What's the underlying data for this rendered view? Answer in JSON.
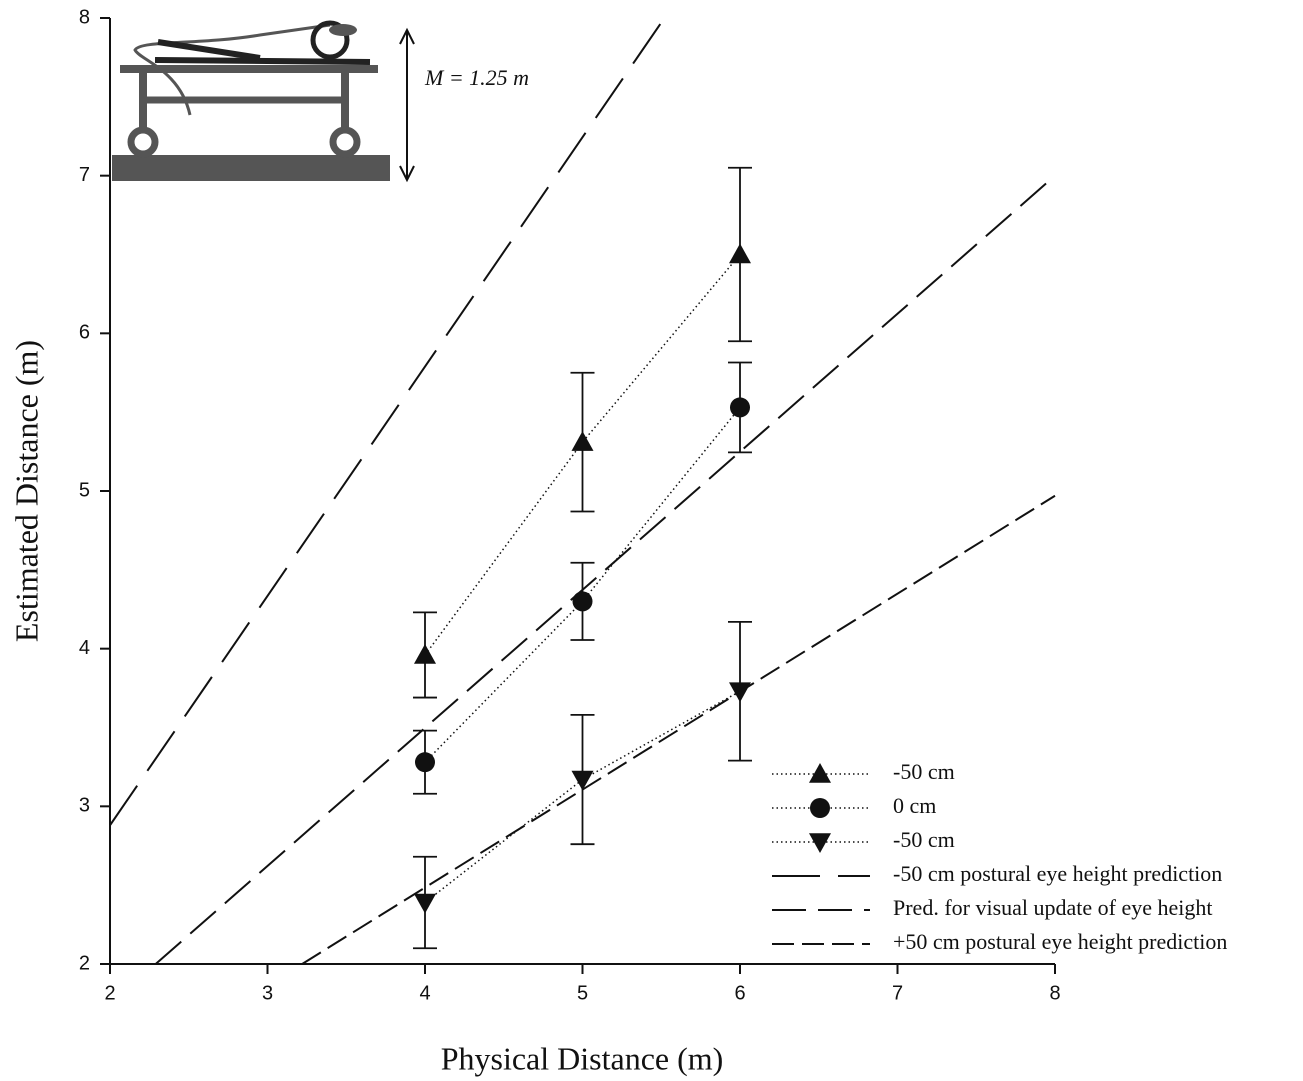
{
  "chart_data": {
    "type": "scatter",
    "xlabel": "Physical Distance (m)",
    "ylabel": "Estimated Distance (m)",
    "annotation": "M = 1.25 m",
    "xlim": [
      2,
      8
    ],
    "ylim": [
      2,
      8
    ],
    "xticks": [
      2,
      3,
      4,
      5,
      6,
      7,
      8
    ],
    "yticks": [
      2,
      3,
      4,
      5,
      6,
      7,
      8
    ],
    "series": [
      {
        "name": "-50 cm",
        "color": "#111111",
        "marker": "triangle-up",
        "line_style": "dotted",
        "x": [
          4,
          5,
          6
        ],
        "values": [
          3.96,
          5.31,
          6.5
        ],
        "errors": [
          0.27,
          0.44,
          0.55
        ]
      },
      {
        "name": "0 cm",
        "color": "#111111",
        "marker": "circle",
        "line_style": "dotted",
        "x": [
          4,
          5,
          6
        ],
        "values": [
          3.28,
          4.3,
          5.53
        ],
        "errors": [
          0.2,
          0.245,
          0.285
        ]
      },
      {
        "name": "-50 cm",
        "color": "#111111",
        "marker": "triangle-down",
        "line_style": "dotted",
        "x": [
          4,
          5,
          6
        ],
        "values": [
          2.39,
          3.17,
          3.73
        ],
        "errors": [
          0.29,
          0.41,
          0.44
        ]
      },
      {
        "name": "-50 cm postural eye height prediction",
        "color": "#111111",
        "line_style": "long-dash",
        "x": [
          2,
          5.52
        ],
        "values": [
          2.88,
          8
        ]
      },
      {
        "name": "Pred. for visual update of eye height",
        "color": "#111111",
        "line_style": "medium-dash",
        "x": [
          2.29,
          8
        ],
        "values": [
          2,
          7
        ]
      },
      {
        "name": "+50 cm postural eye height prediction",
        "color": "#111111",
        "line_style": "short-dash",
        "x": [
          3.22,
          8
        ],
        "values": [
          2,
          4.97
        ]
      }
    ]
  }
}
